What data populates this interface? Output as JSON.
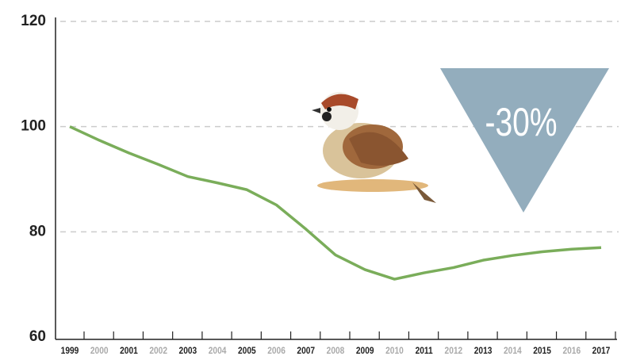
{
  "chart_data": {
    "type": "line",
    "categories": [
      "1999",
      "2000",
      "2001",
      "2002",
      "2003",
      "2004",
      "2005",
      "2006",
      "2007",
      "2008",
      "2009",
      "2010",
      "2011",
      "2012",
      "2013",
      "2014",
      "2015",
      "2016",
      "2017"
    ],
    "series": [
      {
        "name": null,
        "color": "#7aad5a",
        "values": [
          100,
          97.4,
          95,
          92.8,
          90.5,
          89.3,
          88,
          85.1,
          80.5,
          75.6,
          72.8,
          71,
          72.2,
          73.2,
          74.6,
          75.5,
          76.2,
          76.7,
          77
        ]
      }
    ],
    "ylim": [
      60,
      120
    ],
    "yticks": [
      60,
      80,
      100,
      120
    ],
    "grid": true,
    "annotation": "-30%"
  }
}
